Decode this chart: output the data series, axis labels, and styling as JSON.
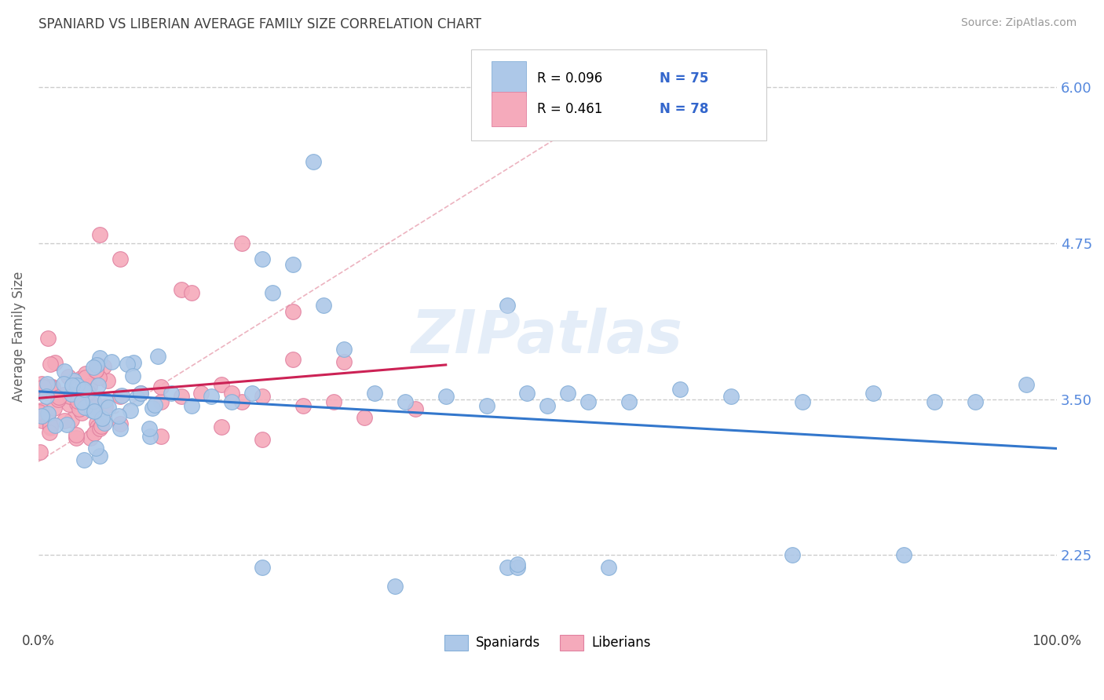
{
  "title": "SPANIARD VS LIBERIAN AVERAGE FAMILY SIZE CORRELATION CHART",
  "source_text": "Source: ZipAtlas.com",
  "ylabel": "Average Family Size",
  "xlim": [
    0.0,
    1.0
  ],
  "ylim": [
    1.65,
    6.35
  ],
  "ytick_positions": [
    2.25,
    3.5,
    4.75,
    6.0
  ],
  "ytick_labels": [
    "2.25",
    "3.50",
    "4.75",
    "6.00"
  ],
  "watermark": "ZIPatlas",
  "spaniard_color": "#adc8e8",
  "liberian_color": "#f5aabb",
  "spaniard_edge": "#85afd8",
  "liberian_edge": "#e080a0",
  "trend_blue": "#3377cc",
  "trend_pink": "#cc2255",
  "diag_color": "#e8a0b0",
  "legend_R1": "R = 0.096",
  "legend_N1": "N = 75",
  "legend_R2": "R = 0.461",
  "legend_N2": "N = 78",
  "legend_label1": "Spaniards",
  "legend_label2": "Liberians",
  "bg_color": "#ffffff",
  "grid_color": "#cccccc",
  "title_color": "#404040",
  "axis_label_color": "#606060",
  "tick_color": "#5588dd",
  "legend_text_color": "#3366cc",
  "legend_R_color": "#000000"
}
